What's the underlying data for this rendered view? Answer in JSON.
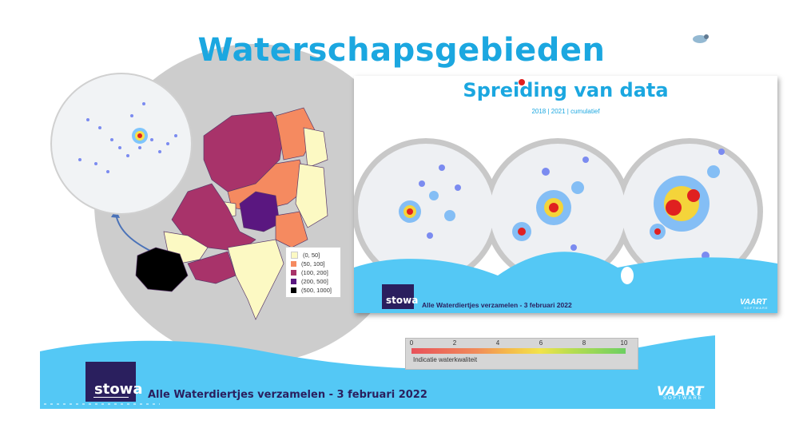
{
  "slide": {
    "title": "Waterschapsgebieden",
    "footer_text": "Alle Waterdiertjes verzamelen - 3 februari 2022",
    "logo_text": "stowa",
    "brand_text": "VAART",
    "brand_sub": "SOFTWARE"
  },
  "legend": {
    "items": [
      {
        "label": "(0, 50]",
        "color": "#fcf9c3"
      },
      {
        "label": "(50, 100]",
        "color": "#f58a60"
      },
      {
        "label": "(100, 200]",
        "color": "#a8336a"
      },
      {
        "label": "(200, 500]",
        "color": "#5a1780"
      },
      {
        "label": "(500, 1000]",
        "color": "#000000"
      }
    ]
  },
  "quality_scale": {
    "ticks": [
      "0",
      "2",
      "4",
      "6",
      "8",
      "10"
    ],
    "caption": "Indicatie waterkwaliteit"
  },
  "inset": {
    "title": "Spreiding van data",
    "subtitle": "2018 | 2021 | cumulatief",
    "footer_text": "Alle Waterdiertjes verzamelen - 3 februari 2022",
    "logo_text": "stowa",
    "brand_text": "VAART",
    "brand_sub": "SOFTWARE"
  },
  "colors": {
    "accent": "#1ba7e0",
    "wave": "#54c8f5",
    "brand_dark": "#2a1f5e",
    "circle_grey": "#cfcfcf"
  }
}
